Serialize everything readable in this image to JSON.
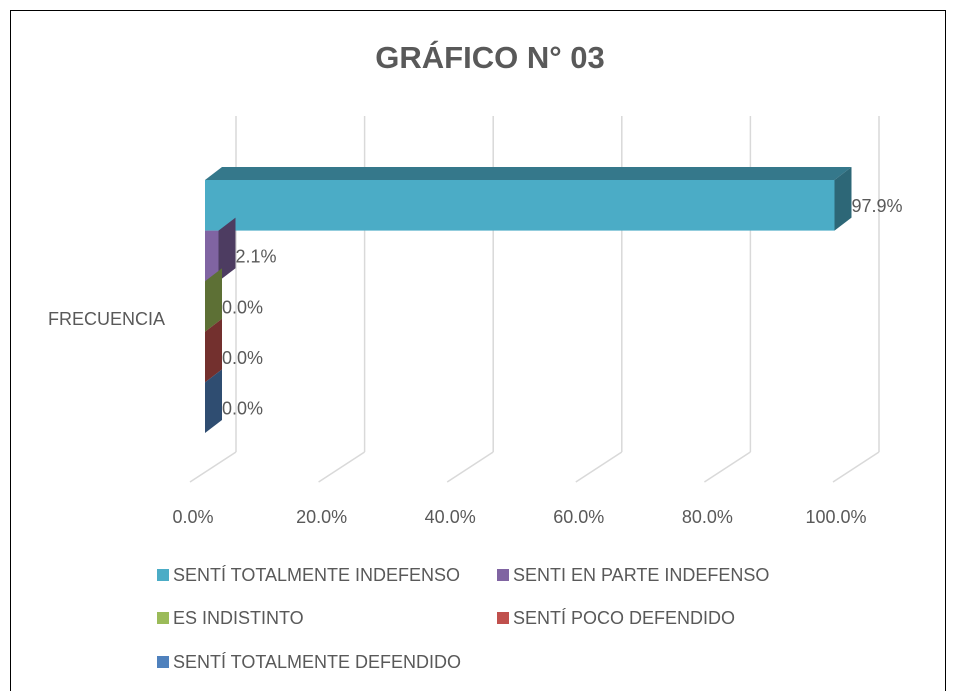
{
  "chart_data": {
    "type": "bar3d",
    "orientation": "horizontal",
    "title": "GRÁFICO N° 03",
    "categories": [
      "FRECUENCIA"
    ],
    "series": [
      {
        "name": "SENTÍ TOTALMENTE INDEFENSO",
        "color": "#4bacc6",
        "values": [
          97.9
        ],
        "value_labels": [
          "97.9%"
        ]
      },
      {
        "name": "SENTI EN PARTE INDEFENSO",
        "color": "#8064a2",
        "values": [
          2.1
        ],
        "value_labels": [
          "2.1%"
        ]
      },
      {
        "name": "ES INDISTINTO",
        "color": "#9bbb59",
        "values": [
          0
        ],
        "value_labels": [
          "0.0%"
        ]
      },
      {
        "name": "SENTÍ POCO DEFENDIDO",
        "color": "#c0504d",
        "values": [
          0
        ],
        "value_labels": [
          "0.0%"
        ]
      },
      {
        "name": "SENTÍ TOTALMENTE DEFENDIDO",
        "color": "#4f81bd",
        "values": [
          0
        ],
        "value_labels": [
          "0.0%"
        ]
      }
    ],
    "xlim": [
      0,
      100
    ],
    "xticks": [
      {
        "value": 0,
        "label": "0.0%"
      },
      {
        "value": 20,
        "label": "20.0%"
      },
      {
        "value": 40,
        "label": "40.0%"
      },
      {
        "value": 60,
        "label": "60.0%"
      },
      {
        "value": 80,
        "label": "80.0%"
      },
      {
        "value": 100,
        "label": "100.0%"
      }
    ],
    "grid": true,
    "legend": "bottom"
  }
}
